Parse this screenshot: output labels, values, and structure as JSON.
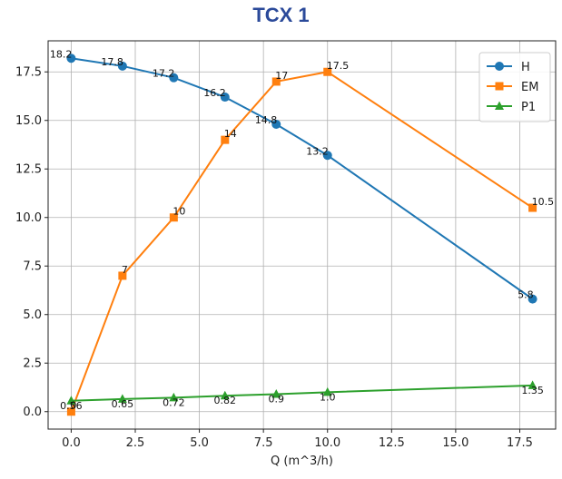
{
  "chart_data": {
    "type": "line",
    "title": "TCX 1",
    "xlabel": "Q (m^3/h)",
    "ylabel": "",
    "xlim": [
      -0.9,
      18.9
    ],
    "ylim": [
      -0.9,
      19.1
    ],
    "xticks": [
      "0.0",
      "2.5",
      "5.0",
      "7.5",
      "10.0",
      "12.5",
      "15.0",
      "17.5"
    ],
    "yticks": [
      "0.0",
      "2.5",
      "5.0",
      "7.5",
      "10.0",
      "12.5",
      "15.0",
      "17.5"
    ],
    "grid": true,
    "legend": "top-right",
    "x": [
      0,
      2,
      4,
      6,
      8,
      10,
      18
    ],
    "series": [
      {
        "name": "H",
        "color": "#1f77b4",
        "marker": "circle",
        "values": [
          18.2,
          17.8,
          17.2,
          16.2,
          14.8,
          13.2,
          5.8
        ],
        "labels": [
          "18.2",
          "17.8",
          "17.2",
          "16.2",
          "14.8",
          "13.2",
          "5.8"
        ]
      },
      {
        "name": "EM",
        "color": "#ff7f0e",
        "marker": "square",
        "values": [
          0,
          7,
          10,
          14,
          17,
          17.5,
          10.5
        ],
        "labels": [
          "0",
          "7",
          "10",
          "14",
          "17",
          "17.5",
          "10.5"
        ]
      },
      {
        "name": "P1",
        "color": "#2ca02c",
        "marker": "triangle",
        "values": [
          0.56,
          0.65,
          0.72,
          0.82,
          0.9,
          1.0,
          1.35
        ],
        "labels": [
          "0.56",
          "0.65",
          "0.72",
          "0.82",
          "0.9",
          "1.0",
          "1.35"
        ]
      }
    ]
  }
}
